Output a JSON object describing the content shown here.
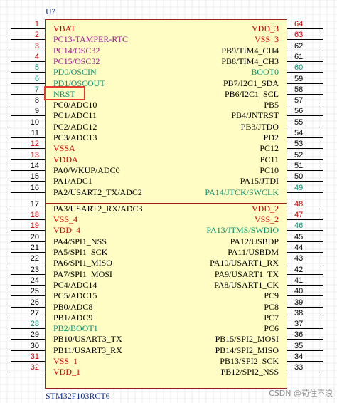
{
  "component": {
    "ref": "U?",
    "part": "STM32F103RCT6",
    "highlighted_pin": "NRST"
  },
  "watermark": "CSDN @苟住不浪",
  "colors": {
    "body_fill": "#fffcc4",
    "body_border": "#a02020",
    "signal": "#000000",
    "power": "#cc0000",
    "function": "#9a2090",
    "boot": "#0a9070",
    "pin_tag": "#1a3a9a",
    "highlight": "#e53c2d"
  },
  "left_pins": [
    {
      "num": "1",
      "label": "VBAT",
      "kind": "power"
    },
    {
      "num": "2",
      "label": "PC13-TAMPER-RTC",
      "kind": "function"
    },
    {
      "num": "3",
      "label": "PC14/OSC32",
      "kind": "function"
    },
    {
      "num": "4",
      "label": "PC15/OSC32",
      "kind": "function"
    },
    {
      "num": "5",
      "label": "PD0/OSCIN",
      "kind": "boot"
    },
    {
      "num": "6",
      "label": "PD1/OSCOUT",
      "kind": "boot"
    },
    {
      "num": "7",
      "label": "NRST",
      "kind": "boot"
    },
    {
      "num": "8",
      "label": "PC0/ADC10",
      "kind": "signal"
    },
    {
      "num": "9",
      "label": "PC1/ADC11",
      "kind": "signal"
    },
    {
      "num": "10",
      "label": "PC2/ADC12",
      "kind": "signal"
    },
    {
      "num": "11",
      "label": "PC3/ADC13",
      "kind": "signal"
    },
    {
      "num": "12",
      "label": "VSSA",
      "kind": "power"
    },
    {
      "num": "13",
      "label": "VDDA",
      "kind": "power"
    },
    {
      "num": "14",
      "label": "PA0/WKUP/ADC0",
      "kind": "signal"
    },
    {
      "num": "15",
      "label": "PA1/ADC1",
      "kind": "signal"
    },
    {
      "num": "16",
      "label": "PA2/USART2_TX/ADC2",
      "kind": "signal"
    },
    {
      "num": "17",
      "label": "PA3/USART2_RX/ADC3",
      "kind": "signal"
    },
    {
      "num": "18",
      "label": "VSS_4",
      "kind": "power"
    },
    {
      "num": "19",
      "label": "VDD_4",
      "kind": "power"
    },
    {
      "num": "20",
      "label": "PA4/SPI1_NSS",
      "kind": "signal"
    },
    {
      "num": "21",
      "label": "PA5/SPI1_SCK",
      "kind": "signal"
    },
    {
      "num": "22",
      "label": "PA6/SPI1_MISO",
      "kind": "signal"
    },
    {
      "num": "23",
      "label": "PA7/SPI1_MOSI",
      "kind": "signal"
    },
    {
      "num": "24",
      "label": "PC4/ADC14",
      "kind": "signal"
    },
    {
      "num": "25",
      "label": "PC5/ADC15",
      "kind": "signal"
    },
    {
      "num": "26",
      "label": "PB0/ADC8",
      "kind": "signal"
    },
    {
      "num": "27",
      "label": "PB1/ADC9",
      "kind": "signal"
    },
    {
      "num": "28",
      "label": "PB2/BOOT1",
      "kind": "boot"
    },
    {
      "num": "29",
      "label": "PB10/USART3_TX",
      "kind": "signal"
    },
    {
      "num": "30",
      "label": "PB11/USART3_RX",
      "kind": "signal"
    },
    {
      "num": "31",
      "label": "VSS_1",
      "kind": "power"
    },
    {
      "num": "32",
      "label": "VDD_1",
      "kind": "power"
    }
  ],
  "right_pins": [
    {
      "num": "64",
      "label": "VDD_3",
      "kind": "power"
    },
    {
      "num": "63",
      "label": "VSS_3",
      "kind": "power"
    },
    {
      "num": "62",
      "label": "PB9/TIM4_CH4",
      "kind": "signal"
    },
    {
      "num": "61",
      "label": "PB8/TIM4_CH3",
      "kind": "signal"
    },
    {
      "num": "60",
      "label": "BOOT0",
      "kind": "boot"
    },
    {
      "num": "59",
      "label": "PB7/I2C1_SDA",
      "kind": "signal"
    },
    {
      "num": "58",
      "label": "PB6/I2C1_SCL",
      "kind": "signal"
    },
    {
      "num": "57",
      "label": "PB5",
      "kind": "signal"
    },
    {
      "num": "56",
      "label": "PB4/JNTRST",
      "kind": "signal"
    },
    {
      "num": "55",
      "label": "PB3/JTDO",
      "kind": "signal"
    },
    {
      "num": "54",
      "label": "PD2",
      "kind": "signal"
    },
    {
      "num": "53",
      "label": "PC12",
      "kind": "signal"
    },
    {
      "num": "52",
      "label": "PC11",
      "kind": "signal"
    },
    {
      "num": "51",
      "label": "PC10",
      "kind": "signal"
    },
    {
      "num": "50",
      "label": "PA15/JTDI",
      "kind": "signal"
    },
    {
      "num": "49",
      "label": "PA14/JTCK/SWCLK",
      "kind": "boot"
    },
    {
      "num": "48",
      "label": "VDD_2",
      "kind": "power"
    },
    {
      "num": "47",
      "label": "VSS_2",
      "kind": "power"
    },
    {
      "num": "46",
      "label": "PA13/JTMS/SWDIO",
      "kind": "boot"
    },
    {
      "num": "45",
      "label": "PA12/USBDP",
      "kind": "signal"
    },
    {
      "num": "44",
      "label": "PA11/USBDM",
      "kind": "signal"
    },
    {
      "num": "43",
      "label": "PA10/USART1_RX",
      "kind": "signal"
    },
    {
      "num": "42",
      "label": "PA9/USART1_TX",
      "kind": "signal"
    },
    {
      "num": "41",
      "label": "PA8/USART1_CK",
      "kind": "signal"
    },
    {
      "num": "40",
      "label": "PC9",
      "kind": "signal"
    },
    {
      "num": "39",
      "label": "PC8",
      "kind": "signal"
    },
    {
      "num": "38",
      "label": "PC7",
      "kind": "signal"
    },
    {
      "num": "37",
      "label": "PC6",
      "kind": "signal"
    },
    {
      "num": "36",
      "label": "PB15/SPI2_MOSI",
      "kind": "signal"
    },
    {
      "num": "35",
      "label": "PB14/SPI2_MISO",
      "kind": "signal"
    },
    {
      "num": "34",
      "label": "PB13/SPI2_SCK",
      "kind": "signal"
    },
    {
      "num": "33",
      "label": "PB12/SPI2_NSS",
      "kind": "signal"
    }
  ]
}
